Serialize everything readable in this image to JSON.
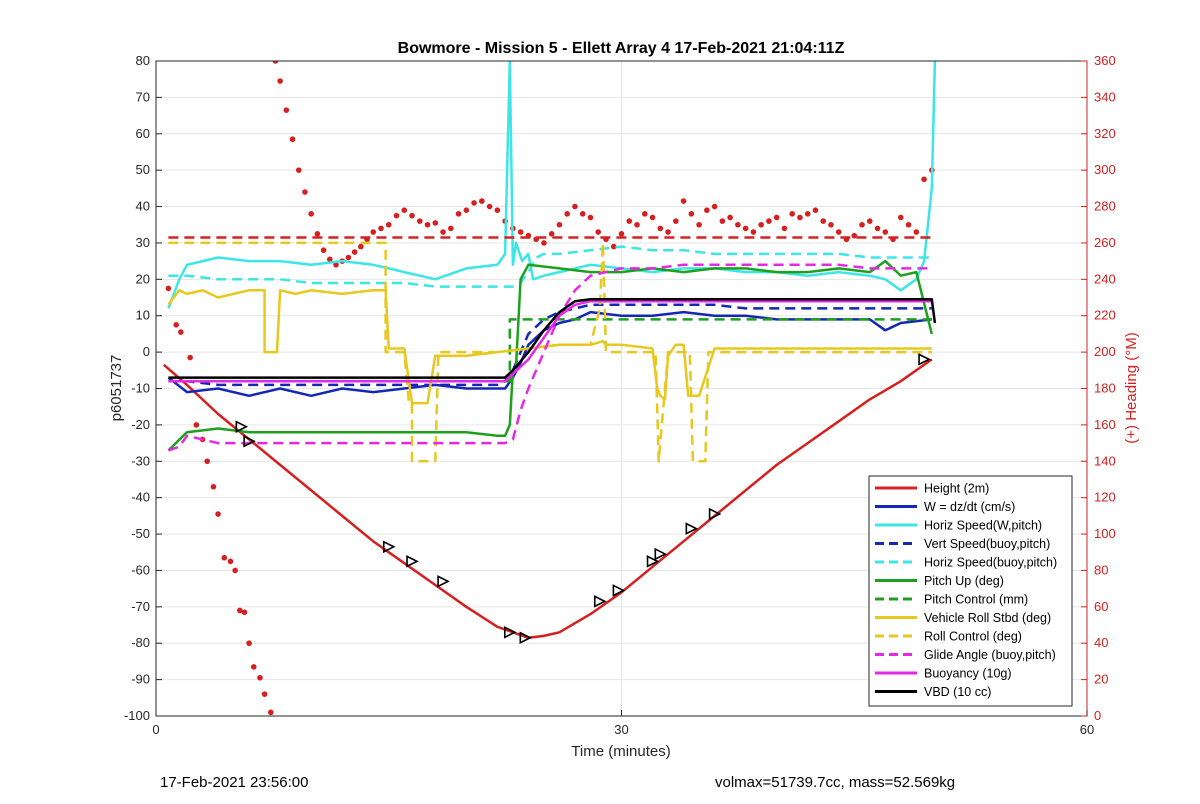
{
  "chart_data": {
    "type": "line",
    "title": "Bowmore - Mission 5 - Ellett Array 4 17-Feb-2021 21:04:11Z",
    "xlabel": "Time (minutes)",
    "ylabel": "p6051737",
    "y2label": "(+) Heading (°M)",
    "xlim": [
      0,
      60
    ],
    "ylim": [
      -100,
      80
    ],
    "y2lim": [
      0,
      360
    ],
    "xticks": [
      0,
      30,
      60
    ],
    "yticks": [
      -100,
      -90,
      -80,
      -70,
      -60,
      -50,
      -40,
      -30,
      -20,
      -10,
      0,
      10,
      20,
      30,
      40,
      50,
      60,
      70,
      80
    ],
    "y2ticks": [
      0,
      20,
      40,
      60,
      80,
      100,
      120,
      140,
      160,
      180,
      200,
      220,
      240,
      260,
      280,
      300,
      320,
      340,
      360
    ],
    "grid": true,
    "legend_position": "bottom-right",
    "colors": {
      "red": "#d62020",
      "blue": "#1428b4",
      "cyan": "#3ce6e6",
      "green": "#1ea01e",
      "yellow": "#e6c81e",
      "magenta": "#e628e6",
      "black": "#000000"
    },
    "series": [
      {
        "name": "Height (2m)",
        "color": "#d62020",
        "style": "solid",
        "width": 2.5,
        "x": [
          0.5,
          2,
          4,
          6,
          8,
          10,
          12,
          14,
          16,
          18,
          20,
          22,
          23,
          24,
          25,
          26,
          28,
          30,
          32,
          34,
          36,
          38,
          40,
          42,
          44,
          46,
          48,
          50
        ],
        "y": [
          -3.5,
          -9,
          -17,
          -24,
          -31,
          -38,
          -45,
          -52,
          -58,
          -64,
          -70,
          -75.5,
          -77,
          -78.5,
          -78,
          -77,
          -72,
          -66,
          -59,
          -52,
          -45,
          -38,
          -31,
          -25,
          -19,
          -13,
          -8,
          -2
        ]
      },
      {
        "name": "W = dz/dt (cm/s)",
        "color": "#1428b4",
        "style": "solid",
        "width": 2.5,
        "x": [
          0.8,
          2,
          4,
          6,
          8,
          10,
          12,
          14,
          16,
          18,
          20,
          22,
          22.5,
          23,
          23.5,
          24,
          25,
          26,
          27,
          28,
          30,
          32,
          34,
          36,
          38,
          40,
          42,
          44,
          46,
          47,
          48,
          50
        ],
        "y": [
          -7,
          -11,
          -10,
          -12,
          -10,
          -12,
          -10,
          -11,
          -10,
          -9,
          -10,
          -10,
          -10,
          -7,
          -3,
          2,
          6,
          8,
          9,
          11,
          10,
          10,
          11,
          10,
          10,
          9,
          9,
          9,
          9,
          6,
          8,
          9
        ]
      },
      {
        "name": "Horiz Speed(W,pitch)",
        "color": "#3ce6e6",
        "style": "solid",
        "width": 2.5,
        "x": [
          0.8,
          1.5,
          2,
          3,
          4,
          6,
          8,
          10,
          12,
          14,
          15,
          16,
          17,
          18,
          20,
          22,
          22.5,
          22.8,
          23,
          23.2,
          23.6,
          24,
          24.3,
          25,
          26,
          28,
          30,
          32,
          34,
          36,
          38,
          40,
          42,
          44,
          46,
          47,
          48,
          49,
          49.5,
          50,
          50.2
        ],
        "y": [
          12,
          20,
          24,
          25,
          26,
          25,
          25,
          24,
          25,
          24,
          23,
          22,
          21,
          20,
          23,
          24,
          27,
          80,
          24,
          30,
          25,
          27,
          20,
          21,
          22,
          24,
          23,
          22,
          23,
          23,
          22,
          22,
          21,
          22,
          21,
          20,
          17,
          20,
          25,
          45,
          80
        ]
      },
      {
        "name": "Vert Speed(buoy,pitch)",
        "color": "#1428b4",
        "style": "dashed",
        "width": 2.5,
        "x": [
          0.8,
          2,
          4,
          6,
          8,
          10,
          12,
          14,
          16,
          18,
          20,
          22,
          22.5,
          23,
          23.5,
          24,
          25,
          26,
          27,
          28,
          30,
          32,
          34,
          36,
          38,
          40,
          42,
          44,
          46,
          48,
          50
        ],
        "y": [
          -8,
          -8,
          -9,
          -9,
          -9,
          -9,
          -9,
          -9,
          -9,
          -9,
          -9,
          -9,
          -8,
          -5,
          0,
          5,
          9,
          11,
          12,
          13,
          13,
          13,
          13,
          13,
          12,
          12,
          12,
          12,
          12,
          12,
          12
        ]
      },
      {
        "name": "Horiz Speed(buoy,pitch)",
        "color": "#3ce6e6",
        "style": "dashed",
        "width": 2.5,
        "x": [
          0.8,
          2,
          4,
          6,
          8,
          10,
          12,
          14,
          16,
          18,
          20,
          22,
          22.5,
          23,
          23.5,
          24,
          24.5,
          25,
          26,
          28,
          30,
          32,
          34,
          36,
          38,
          40,
          42,
          44,
          46,
          48,
          50
        ],
        "y": [
          21,
          21,
          20,
          20,
          20,
          19,
          19,
          19,
          19,
          18,
          18,
          18,
          18,
          18,
          19,
          22,
          26,
          27,
          27,
          28,
          29,
          28,
          28,
          27,
          27,
          27,
          27,
          27,
          26,
          26,
          26
        ]
      },
      {
        "name": "Pitch Up (deg)",
        "color": "#1ea01e",
        "style": "solid",
        "width": 2.5,
        "x": [
          0.8,
          2,
          4,
          6,
          8,
          10,
          12,
          14,
          16,
          18,
          20,
          22,
          22.5,
          22.8,
          23,
          23.2,
          23.5,
          24,
          26,
          28,
          30,
          32,
          34,
          36,
          38,
          40,
          42,
          44,
          46,
          47,
          48,
          49,
          50
        ],
        "y": [
          -27,
          -22,
          -21,
          -22,
          -22,
          -22,
          -22,
          -22,
          -22,
          -22,
          -22,
          -23,
          -23,
          -20,
          -5,
          -4,
          20,
          24,
          23,
          22,
          22,
          23,
          22,
          23,
          23,
          22,
          22,
          23,
          22,
          25,
          21,
          22,
          5
        ]
      },
      {
        "name": "Pitch Control (mm)",
        "color": "#1ea01e",
        "style": "dashed",
        "width": 2.5,
        "x": [
          0.8,
          22.8,
          22.8,
          50
        ],
        "y": [
          -8,
          -8,
          9,
          9
        ]
      },
      {
        "name": "Vehicle Roll Stbd (deg)",
        "color": "#e6c81e",
        "style": "solid",
        "width": 2.5,
        "x": [
          0.8,
          1.5,
          2,
          3,
          4,
          5,
          6,
          7,
          7,
          7.8,
          8,
          9,
          10,
          12,
          14,
          14.8,
          15,
          16,
          16.5,
          16.8,
          17,
          17.5,
          18,
          20,
          22,
          24,
          26,
          28,
          28.8,
          29,
          30,
          32,
          32.3,
          32.5,
          32.8,
          33,
          33.5,
          34,
          34.3,
          34.6,
          35,
          36,
          38,
          40,
          42,
          44,
          46,
          48,
          50
        ],
        "y": [
          13,
          17,
          16,
          17,
          15,
          16,
          17,
          17,
          0,
          0,
          17,
          16,
          17,
          16,
          17,
          17,
          1,
          1,
          -14,
          -14,
          -14,
          -14,
          -1,
          -1,
          0,
          1,
          2,
          2,
          3,
          2,
          2,
          1,
          -10,
          -12,
          -13,
          -1,
          2,
          2,
          -12,
          -12,
          -12,
          1,
          1,
          1,
          1,
          1,
          1,
          1,
          1
        ]
      },
      {
        "name": "Roll Control (deg)",
        "color": "#e6c81e",
        "style": "dashed",
        "width": 2.5,
        "x": [
          0.8,
          14.8,
          14.8,
          16,
          16.3,
          16.5,
          16.5,
          18,
          18.2,
          20,
          22,
          24,
          26,
          28,
          28.6,
          28.8,
          29,
          30,
          32,
          32.2,
          32.4,
          32.6,
          33,
          33.2,
          34.4,
          34.6,
          35,
          35.4,
          35.6,
          36,
          38,
          40,
          42,
          44,
          46,
          48,
          50
        ],
        "y": [
          30,
          30,
          0,
          0,
          -14,
          -14,
          -30,
          -30,
          0,
          0,
          0,
          1,
          2,
          2,
          12,
          30,
          0,
          0,
          0,
          0,
          -30,
          -20,
          0,
          0,
          0,
          -30,
          -30,
          -30,
          0,
          0,
          0,
          0,
          0,
          0,
          0,
          0,
          0
        ]
      },
      {
        "name": "Glide Angle (buoy,pitch)",
        "color": "#e628e6",
        "style": "dashed",
        "width": 2.5,
        "x": [
          0.8,
          1.5,
          2,
          4,
          6,
          8,
          10,
          12,
          14,
          16,
          18,
          20,
          22,
          22.5,
          23,
          23.5,
          24,
          25,
          26,
          27,
          28,
          30,
          32,
          34,
          36,
          38,
          40,
          42,
          44,
          46,
          48,
          50
        ],
        "y": [
          -27,
          -26,
          -23,
          -25,
          -25,
          -25,
          -25,
          -25,
          -25,
          -25,
          -25,
          -25,
          -25,
          -25,
          -24,
          -16,
          -10,
          0,
          10,
          17,
          21,
          23,
          23,
          24,
          24,
          24,
          24,
          24,
          24,
          23,
          23,
          23
        ]
      },
      {
        "name": "Buoyancy (10g)",
        "color": "#e628e6",
        "style": "solid",
        "width": 2.5,
        "x": [
          0.8,
          22.5,
          23,
          24,
          25,
          26,
          27,
          28,
          30,
          32,
          34,
          36,
          38,
          40,
          42,
          44,
          46,
          48,
          50
        ],
        "y": [
          -8,
          -8,
          -6,
          -2,
          4,
          10,
          13,
          14,
          14,
          14,
          14,
          14,
          14,
          14,
          14,
          14,
          14,
          14,
          14
        ]
      },
      {
        "name": "VBD (10 cc)",
        "color": "#000000",
        "style": "solid",
        "width": 2.5,
        "x": [
          0.8,
          22.5,
          23,
          24,
          25,
          26,
          27,
          28,
          30,
          32,
          34,
          36,
          38,
          40,
          42,
          44,
          46,
          48,
          50,
          50.2
        ],
        "y": [
          -7,
          -7,
          -5,
          0,
          6,
          11,
          14,
          14.5,
          14.5,
          14.5,
          14.5,
          14.5,
          14.5,
          14.5,
          14.5,
          14.5,
          14.5,
          14.5,
          14.5,
          8
        ]
      },
      {
        "name": "Heading target",
        "color": "#d62020",
        "style": "dashed",
        "width": 2.5,
        "axis": "right",
        "x": [
          0.8,
          50
        ],
        "y": [
          263,
          263
        ]
      }
    ],
    "heading_points": {
      "color": "#d62020",
      "axis": "right",
      "x": [
        0.8,
        1.3,
        1.6,
        2.2,
        2.6,
        3.0,
        3.3,
        3.7,
        4.0,
        4.4,
        4.8,
        5.1,
        5.4,
        5.7,
        6.0,
        6.3,
        6.7,
        7.0,
        7.4,
        7.7,
        8.0,
        8.4,
        8.8,
        9.2,
        9.6,
        10.0,
        10.4,
        10.8,
        11.2,
        11.6,
        12.0,
        12.4,
        12.8,
        13.2,
        13.6,
        14.0,
        14.5,
        15.0,
        15.5,
        16.0,
        16.5,
        17.0,
        17.5,
        18.0,
        18.5,
        19.0,
        19.5,
        20.0,
        20.5,
        21.0,
        21.5,
        22.0,
        22.5,
        23.0,
        23.5,
        24.0,
        24.5,
        25.0,
        25.5,
        26.0,
        26.5,
        27.0,
        27.5,
        28.0,
        28.5,
        29.0,
        29.5,
        30.0,
        30.5,
        31.0,
        31.5,
        32.0,
        32.5,
        33.0,
        33.5,
        34.0,
        34.5,
        35.0,
        35.5,
        36.0,
        36.5,
        37.0,
        37.5,
        38.0,
        38.5,
        39.0,
        39.5,
        40.0,
        40.5,
        41.0,
        41.5,
        42.0,
        42.5,
        43.0,
        43.5,
        44.0,
        44.5,
        45.0,
        45.5,
        46.0,
        46.5,
        47.0,
        47.5,
        48.0,
        48.5,
        49.0,
        49.5,
        50.0
      ],
      "y": [
        235,
        215,
        211,
        197,
        160,
        152,
        140,
        126,
        111,
        87,
        85,
        80,
        58,
        57,
        40,
        27,
        21,
        12,
        2,
        360,
        349,
        333,
        317,
        300,
        288,
        276,
        265,
        256,
        251,
        248,
        250,
        252,
        255,
        258,
        262,
        266,
        268,
        270,
        275,
        278,
        275,
        272,
        270,
        271,
        266,
        268,
        276,
        278,
        282,
        283,
        280,
        278,
        272,
        268,
        266,
        264,
        262,
        260,
        265,
        270,
        276,
        280,
        276,
        274,
        266,
        262,
        258,
        265,
        272,
        270,
        276,
        274,
        268,
        266,
        272,
        283,
        276,
        270,
        278,
        280,
        272,
        274,
        270,
        268,
        266,
        270,
        272,
        274,
        268,
        276,
        274,
        276,
        278,
        272,
        270,
        266,
        262,
        264,
        270,
        272,
        268,
        266,
        262,
        274,
        270,
        266,
        295,
        300
      ]
    },
    "markers": {
      "symbol": "triangle",
      "color": "#000000",
      "x": [
        5.5,
        6.0,
        15.0,
        16.5,
        18.5,
        22.8,
        23.8,
        28.6,
        29.8,
        32.0,
        32.5,
        34.5,
        36.0,
        49.5
      ],
      "y": [
        -20.5,
        -24.5,
        -53.5,
        -57.5,
        -63,
        -77,
        -78.5,
        -68.5,
        -65.5,
        -57.5,
        -55.5,
        -48.5,
        -44.5,
        -2
      ]
    }
  },
  "footer": {
    "left": "17-Feb-2021 23:56:00",
    "right": "volmax=51739.7cc, mass=52.569kg"
  }
}
